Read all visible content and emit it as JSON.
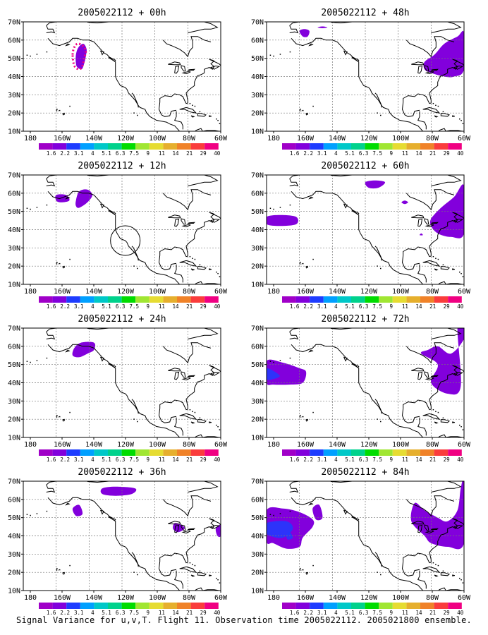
{
  "panels": [
    {
      "title": "2005022112 + 00h"
    },
    {
      "title": "2005022112 + 48h"
    },
    {
      "title": "2005022112 + 12h"
    },
    {
      "title": "2005022112 + 60h"
    },
    {
      "title": "2005022112 + 24h"
    },
    {
      "title": "2005022112 + 72h"
    },
    {
      "title": "2005022112 + 36h"
    },
    {
      "title": "2005022112 + 84h"
    }
  ],
  "map": {
    "lon_ticks": [
      "180",
      "160W",
      "140W",
      "120W",
      "100W",
      "80W",
      "60W"
    ],
    "lat_ticks": [
      "10N",
      "20N",
      "30N",
      "40N",
      "50N",
      "60N",
      "70N"
    ],
    "lon_range": [
      -180,
      -60
    ],
    "lat_range": [
      10,
      70
    ]
  },
  "colorbar": {
    "labels": [
      "1.6",
      "2.2",
      "3.1",
      "4",
      "5.1",
      "6.3",
      "7.5",
      "9",
      "11",
      "14",
      "21",
      "29",
      "40"
    ],
    "colors": [
      "#a000c8",
      "#8200dc",
      "#1e3cff",
      "#00a0ff",
      "#00c8c8",
      "#00d28c",
      "#00dc00",
      "#a0e632",
      "#e6dc32",
      "#e6af2d",
      "#f08228",
      "#fa3c3c",
      "#f00082"
    ]
  },
  "footer": "Signal Variance for u,v,T. Flight 11. Observation time 2005022112. 2005021800 ensemble."
}
